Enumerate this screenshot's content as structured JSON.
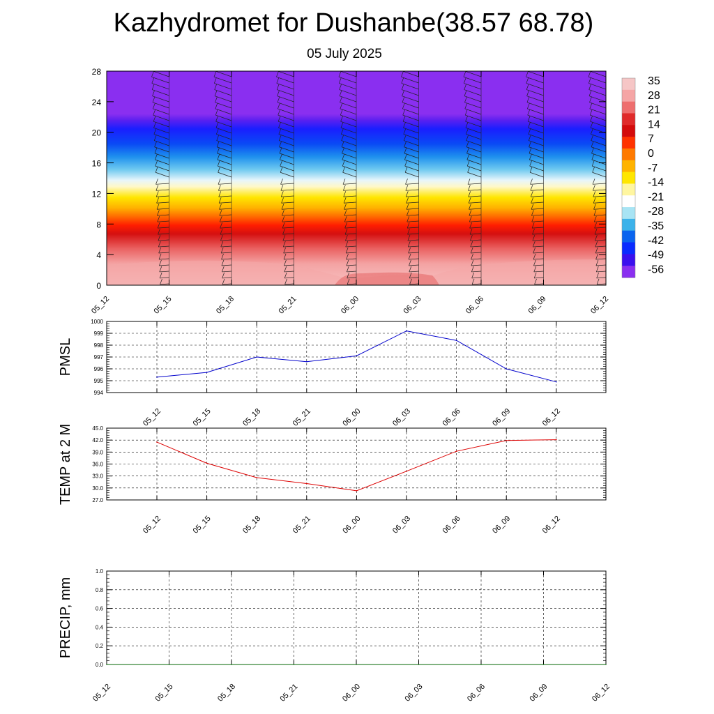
{
  "header": {
    "title": "Kazhydromet for Dushanbe(38.57 68.78)",
    "subtitle": "05 July 2025"
  },
  "chart_data": [
    {
      "type": "heatmap",
      "id": "cross-section",
      "x_tick_labels": [
        "05_12",
        "05_15",
        "05_18",
        "05_21",
        "06_00",
        "06_03",
        "06_06",
        "06_09",
        "06_12"
      ],
      "y_tick_labels": [
        "0",
        "4",
        "8",
        "12",
        "16",
        "20",
        "24",
        "28"
      ],
      "ylim": [
        0,
        28
      ],
      "colorbar_labels": [
        "35",
        "28",
        "21",
        "14",
        "7",
        "0",
        "-7",
        "-14",
        "-21",
        "-28",
        "-35",
        "-42",
        "-49",
        "-56"
      ],
      "colorbar_colors": [
        "#f6c6c6",
        "#f5a5a5",
        "#ee6e6e",
        "#e02a2a",
        "#d40b0b",
        "#ff3300",
        "#ff7a00",
        "#ffb300",
        "#ffe600",
        "#fff6a0",
        "#ffffff",
        "#a8e4f4",
        "#3cb2ea",
        "#0a64ef",
        "#0a2bff",
        "#3a10ee",
        "#8a2ff0"
      ],
      "wind_barbs": true
    },
    {
      "type": "line",
      "id": "pmsl",
      "ylabel": "PMSL",
      "x": [
        "05_12",
        "05_15",
        "05_18",
        "05_21",
        "06_00",
        "06_03",
        "06_06",
        "06_09",
        "06_12"
      ],
      "values": [
        995.3,
        995.7,
        997.0,
        996.6,
        997.1,
        999.2,
        998.4,
        996.0,
        994.9
      ],
      "y_tick_labels": [
        "994",
        "995",
        "996",
        "997",
        "998",
        "999",
        "1000"
      ],
      "ylim": [
        994,
        1000
      ],
      "color": "#0000cc",
      "grid": true
    },
    {
      "type": "line",
      "id": "temp2m",
      "ylabel": "TEMP at 2 M",
      "x": [
        "05_12",
        "05_15",
        "05_18",
        "05_21",
        "06_00",
        "06_03",
        "06_06",
        "06_09",
        "06_12"
      ],
      "values": [
        41.5,
        36.2,
        32.6,
        31.1,
        29.3,
        34.2,
        39.2,
        41.9,
        42.1
      ],
      "y_tick_labels": [
        "27.0",
        "30.0",
        "33.0",
        "36.0",
        "39.0",
        "42.0",
        "45.0"
      ],
      "ylim": [
        27,
        45
      ],
      "color": "#dd0000",
      "grid": true
    },
    {
      "type": "line",
      "id": "precip",
      "ylabel": "PRECIP, mm",
      "x": [
        "05_12",
        "05_15",
        "05_18",
        "05_21",
        "06_00",
        "06_03",
        "06_06",
        "06_09",
        "06_12"
      ],
      "values": [
        0,
        0,
        0,
        0,
        0,
        0,
        0,
        0,
        0
      ],
      "y_tick_labels": [
        "0.0",
        "0.2",
        "0.4",
        "0.6",
        "0.8",
        "1.0"
      ],
      "ylim": [
        0,
        1
      ],
      "color": "#006600",
      "grid": true
    }
  ]
}
